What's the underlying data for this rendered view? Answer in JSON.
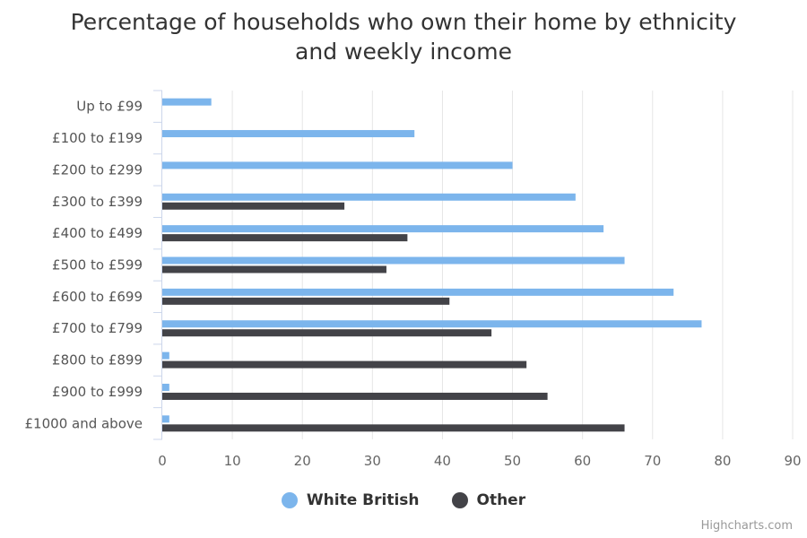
{
  "chart_data": {
    "type": "bar",
    "orientation": "horizontal",
    "title": "Percentage of households who own their home by ethnicity\nand weekly income",
    "categories": [
      "Up to £99",
      "£100 to £199",
      "£200 to £299",
      "£300 to £399",
      "£400 to £499",
      "£500 to £599",
      "£600 to £699",
      "£700 to £799",
      "£800 to £899",
      "£900 to £999",
      "£1000 and above"
    ],
    "series": [
      {
        "name": "White British",
        "color": "#7cb5ec",
        "values": [
          7,
          36,
          50,
          59,
          63,
          66,
          73,
          77,
          1,
          1,
          1
        ]
      },
      {
        "name": "Other",
        "color": "#434348",
        "values": [
          null,
          null,
          null,
          26,
          35,
          32,
          41,
          47,
          52,
          55,
          66
        ]
      }
    ],
    "xlim": [
      0,
      90
    ],
    "xticks": [
      0,
      10,
      20,
      30,
      40,
      50,
      60,
      70,
      80,
      90
    ],
    "grid": true,
    "legend_position": "bottom"
  },
  "credits": "Highcharts.com"
}
